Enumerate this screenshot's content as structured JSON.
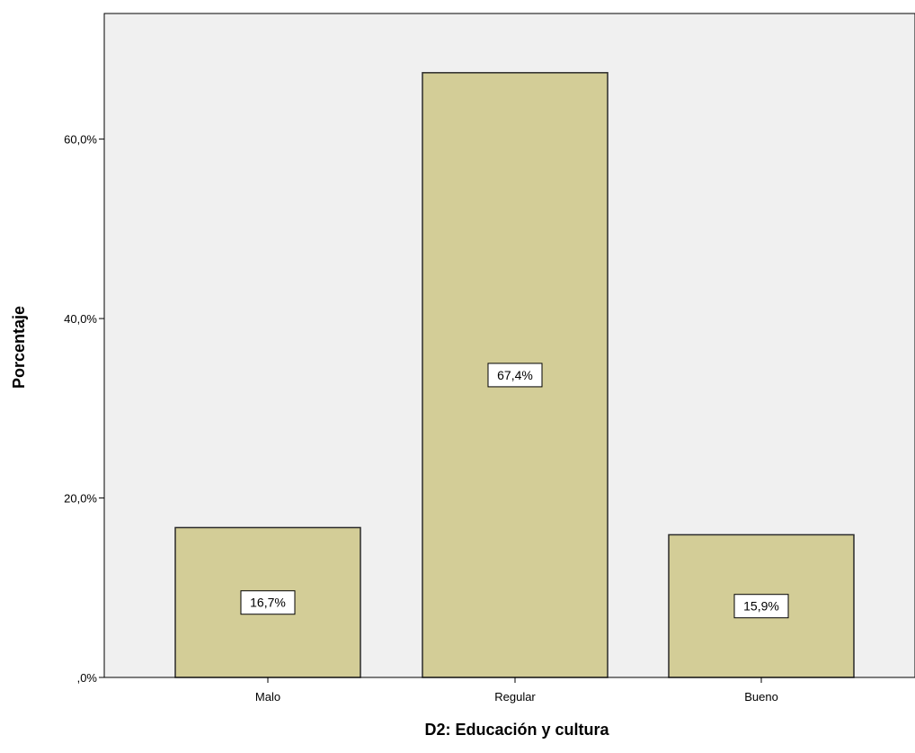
{
  "chart_data": {
    "type": "bar",
    "categories": [
      "Malo",
      "Regular",
      "Bueno"
    ],
    "values": [
      16.7,
      67.4,
      15.9
    ],
    "data_labels": [
      "16,7%",
      "67,4%",
      "15,9%"
    ],
    "title": "",
    "xlabel": "D2: Educación y cultura",
    "ylabel": "Porcentaje",
    "ylim": [
      0,
      74
    ],
    "yticks": [
      0,
      20,
      40,
      60
    ],
    "ytick_labels": [
      ",0%",
      "20,0%",
      "40,0%",
      "60,0%"
    ],
    "grid": false,
    "legend": "none",
    "colors": {
      "bar_fill": "#d3cd97",
      "bar_stroke": "#2a2a2a",
      "plot_background": "#f0f0f0",
      "axis": "#000000",
      "label_box": "#ffffff"
    }
  }
}
